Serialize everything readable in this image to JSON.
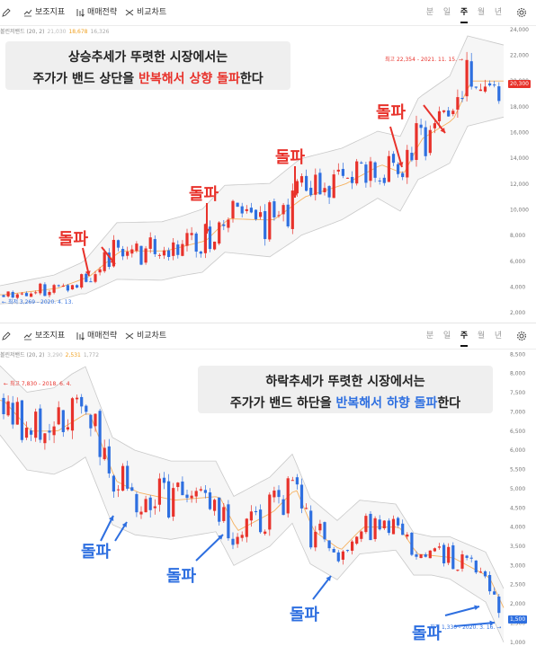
{
  "toolbar": {
    "draw_label": "",
    "indicator_label": "보조지표",
    "trade_strategy_label": "매매전략",
    "compare_label": "비교차트",
    "periods": [
      "분",
      "일",
      "주",
      "월",
      "년"
    ],
    "active_period": "주"
  },
  "top": {
    "indicator": {
      "name": "볼린저밴드 (20, 2)",
      "upper": "21,030",
      "middle": "18,678",
      "lower": "16,326"
    },
    "callout_line1": "상승추세가 뚜렷한 시장에서는",
    "callout_line2_pre": "주가가 밴드 상단을 ",
    "callout_line2_hl": "반복해서 상향 돌파",
    "callout_line2_post": "한다",
    "high_label": "최고 22,354 - 2021. 11. 15.",
    "low_label": "최저 3,269 - 2020. 4. 13.",
    "current_price": "20,300",
    "breakout_label": "돌파"
  },
  "bottom": {
    "indicator": {
      "name": "볼린저밴드 (20, 2)",
      "upper": "3,290",
      "middle": "2,531",
      "lower": "1,772"
    },
    "callout_line1": "하락추세가 뚜렷한 시장에서는",
    "callout_line2_pre": "주가가 밴드 하단을 ",
    "callout_line2_hl": "반복해서 하향 돌파",
    "callout_line2_post": "한다",
    "high_label": "최고 7,830 - 2018. 6. 4.",
    "low_label": "최저 1,330 - 2020. 3. 16.",
    "current_price": "1,500",
    "breakout_label": "돌파"
  },
  "colors": {
    "up": "#e8322b",
    "down": "#2e6fe0",
    "band_line": "#c9c9c9",
    "band_fill": "#f6f6f6",
    "middle_line": "#f5b160",
    "callout_bg": "#efefef"
  },
  "chart_data": [
    {
      "type": "candlestick",
      "title": "상승추세가 뚜렷한 시장에서는 주가가 밴드 상단을 반복해서 상향 돌파한다",
      "indicator": "볼린저밴드 (20, 2)",
      "y_ticks": [
        2000,
        4000,
        6000,
        8000,
        10000,
        12000,
        14000,
        16000,
        18000,
        20000,
        22000,
        24000
      ],
      "y_tick_labels": [
        "2,000",
        "4,000",
        "6,000",
        "8,000",
        "10,000",
        "12,000",
        "14,000",
        "16,000",
        "18,000",
        "20,000",
        "22,000",
        "24,000"
      ],
      "ylim": [
        1800,
        24200
      ],
      "annotation": "돌파",
      "high": 22354,
      "low": 3269,
      "last": 20300
    },
    {
      "type": "candlestick",
      "title": "하락추세가 뚜렷한 시장에서는 주가가 밴드 하단을 반복해서 하향 돌파한다",
      "indicator": "볼린저밴드 (20, 2)",
      "y_ticks": [
        1000,
        1500,
        2000,
        2500,
        3000,
        3500,
        4000,
        4500,
        5000,
        5500,
        6000,
        6500,
        7000,
        7500,
        8000,
        8500
      ],
      "y_tick_labels": [
        "1,000",
        "1,500",
        "2,000",
        "2,500",
        "3,000",
        "3,500",
        "4,000",
        "4,500",
        "5,000",
        "5,500",
        "6,000",
        "6,500",
        "7,000",
        "7,500",
        "8,000",
        "8,500"
      ],
      "ylim": [
        950,
        8600
      ],
      "annotation": "돌파",
      "high": 7830,
      "low": 1330,
      "last": 1500
    }
  ]
}
